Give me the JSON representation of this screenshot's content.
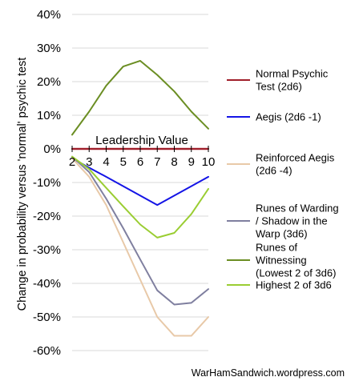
{
  "chart_data": {
    "type": "line",
    "title": "",
    "xlabel": "Leadership Value",
    "ylabel": "Change in probability versus 'normal' psychic test",
    "x": [
      2,
      3,
      4,
      5,
      6,
      7,
      8,
      9,
      10
    ],
    "ylim": [
      -60,
      40
    ],
    "ytick_labels": [
      "40%",
      "30%",
      "20%",
      "10%",
      "0%",
      "-10%",
      "-20%",
      "-30%",
      "-40%",
      "-50%",
      "-60%"
    ],
    "grid": true,
    "legend_position": "right",
    "series": [
      {
        "name": "Normal Psychic Test (2d6)",
        "color": "#a01e2a",
        "values": [
          0,
          0,
          0,
          0,
          0,
          0,
          0,
          0,
          0
        ]
      },
      {
        "name": "Aegis (2d6 -1)",
        "color": "#1414e6",
        "values": [
          -2.8,
          -5.6,
          -8.3,
          -11.1,
          -13.9,
          -16.7,
          -13.9,
          -11.1,
          -8.3
        ]
      },
      {
        "name": "Reinforced Aegis (2d6 -4)",
        "color": "#e8c9a8",
        "values": [
          -2.8,
          -8.3,
          -16.7,
          -27.8,
          -38.9,
          -50.0,
          -55.6,
          -55.6,
          -50.0
        ]
      },
      {
        "name": "Runes of Warding / Shadow in the Warp (3d6)",
        "color": "#7f7f9f",
        "values": [
          -2.3,
          -6.9,
          -14.8,
          -23.6,
          -32.9,
          -42.1,
          -46.3,
          -45.8,
          -41.7
        ]
      },
      {
        "name": "Runes of Witnessing (Lowest 2 of 3d6)",
        "color": "#6b8e23",
        "values": [
          4.2,
          11.1,
          18.8,
          24.5,
          26.2,
          22.0,
          17.1,
          11.1,
          6.0
        ]
      },
      {
        "name": "Highest 2 of 3d6",
        "color": "#9acd32",
        "values": [
          -2.3,
          -6.0,
          -11.6,
          -17.1,
          -22.5,
          -26.4,
          -25.0,
          -19.4,
          -11.9
        ]
      }
    ],
    "legend_labels": [
      [
        "Normal Psychic",
        "Test (2d6)"
      ],
      [
        "Aegis (2d6 -1)"
      ],
      [
        "Reinforced Aegis",
        "(2d6 -4)"
      ],
      [
        "Runes of Warding",
        "/ Shadow in the",
        "Warp (3d6)"
      ],
      [
        "Runes of",
        "Witnessing",
        "(Lowest 2 of 3d6)"
      ],
      [
        "Highest 2 of 3d6"
      ]
    ]
  },
  "credit": "WarHamSandwich.wordpress.com"
}
